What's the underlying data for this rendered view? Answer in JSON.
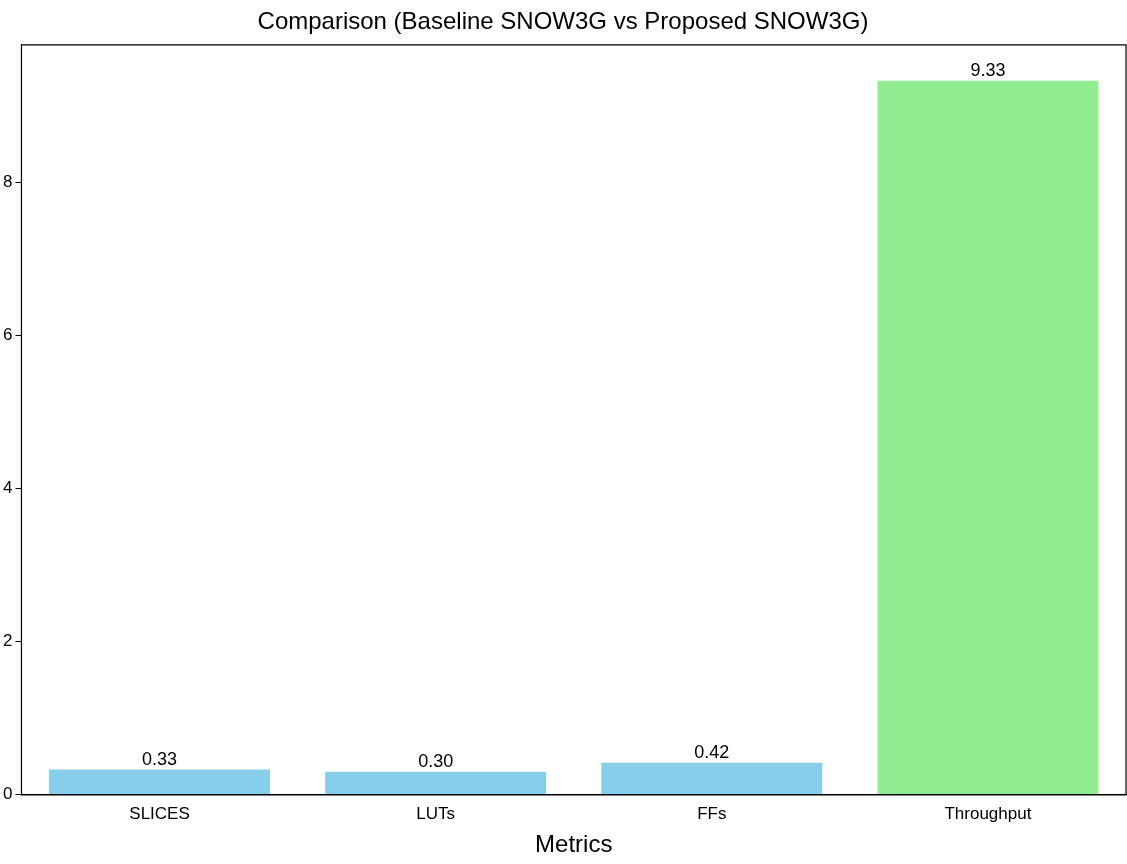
{
  "chart_data": {
    "type": "bar",
    "title": "Comparison (Baseline SNOW3G vs Proposed SNOW3G)",
    "xlabel": "Metrics",
    "categories": [
      "SLICES",
      "LUTs",
      "FFs",
      "Throughput"
    ],
    "values": [
      0.33,
      0.3,
      0.42,
      9.33
    ],
    "colors": [
      "#87ceeb",
      "#87ceeb",
      "#87ceeb",
      "#90ee90"
    ],
    "value_labels": [
      "0.33",
      "0.30",
      "0.42",
      "9.33"
    ],
    "ylim": [
      0,
      9.8
    ],
    "yticks": [
      0,
      2,
      4,
      6,
      8
    ],
    "grid": false,
    "legend": false
  }
}
